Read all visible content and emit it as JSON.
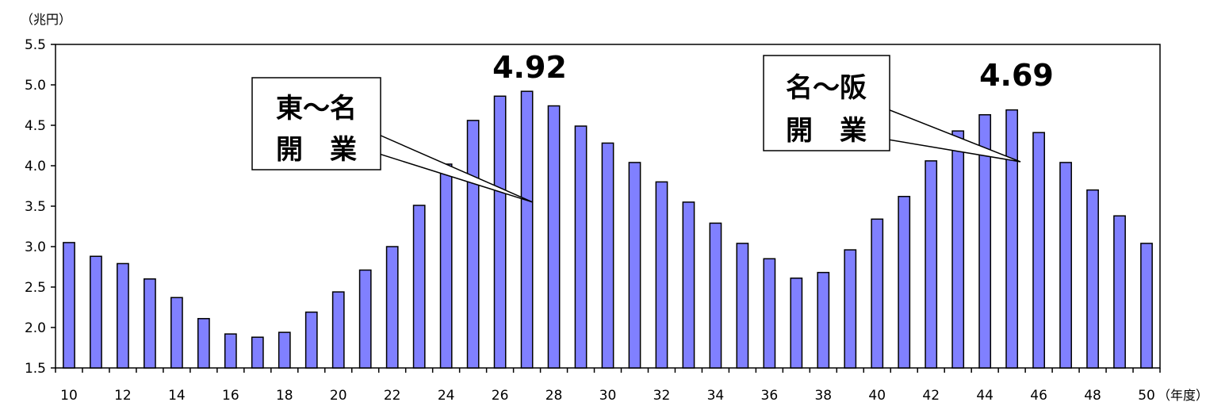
{
  "chart_data": {
    "type": "bar",
    "y_unit_label": "（兆円）",
    "x_unit_label": "（年度）",
    "ylim": [
      1.5,
      5.5
    ],
    "yticks": [
      "1.5",
      "2.0",
      "2.5",
      "3.0",
      "3.5",
      "4.0",
      "4.5",
      "5.0",
      "5.5"
    ],
    "categories": [
      10,
      11,
      12,
      13,
      14,
      15,
      16,
      17,
      18,
      19,
      20,
      21,
      22,
      23,
      24,
      25,
      26,
      27,
      28,
      29,
      30,
      31,
      32,
      33,
      34,
      35,
      36,
      37,
      38,
      39,
      40,
      41,
      42,
      43,
      44,
      45,
      46,
      47,
      48,
      49,
      50
    ],
    "x_tick_labels": [
      "10",
      "12",
      "14",
      "16",
      "18",
      "20",
      "22",
      "24",
      "26",
      "28",
      "30",
      "32",
      "34",
      "36",
      "38",
      "40",
      "42",
      "44",
      "46",
      "48",
      "50"
    ],
    "values": [
      3.05,
      2.88,
      2.79,
      2.6,
      2.37,
      2.11,
      1.92,
      1.88,
      1.94,
      2.19,
      2.44,
      2.71,
      3.0,
      3.51,
      4.02,
      4.56,
      4.86,
      4.92,
      4.74,
      4.49,
      4.28,
      4.04,
      3.8,
      3.55,
      3.29,
      3.04,
      2.85,
      2.61,
      2.68,
      2.96,
      3.34,
      3.62,
      4.06,
      4.43,
      4.63,
      4.69,
      4.41,
      4.04,
      3.7,
      3.38,
      3.04
    ],
    "bar_color": "#8080ff",
    "grid": false,
    "annotations": [
      {
        "lines": [
          "東～名",
          "開　業"
        ],
        "peak_label": "4.92",
        "peak_category": 27
      },
      {
        "lines": [
          "名～阪",
          "開　業"
        ],
        "peak_label": "4.69",
        "peak_category": 45
      }
    ]
  }
}
